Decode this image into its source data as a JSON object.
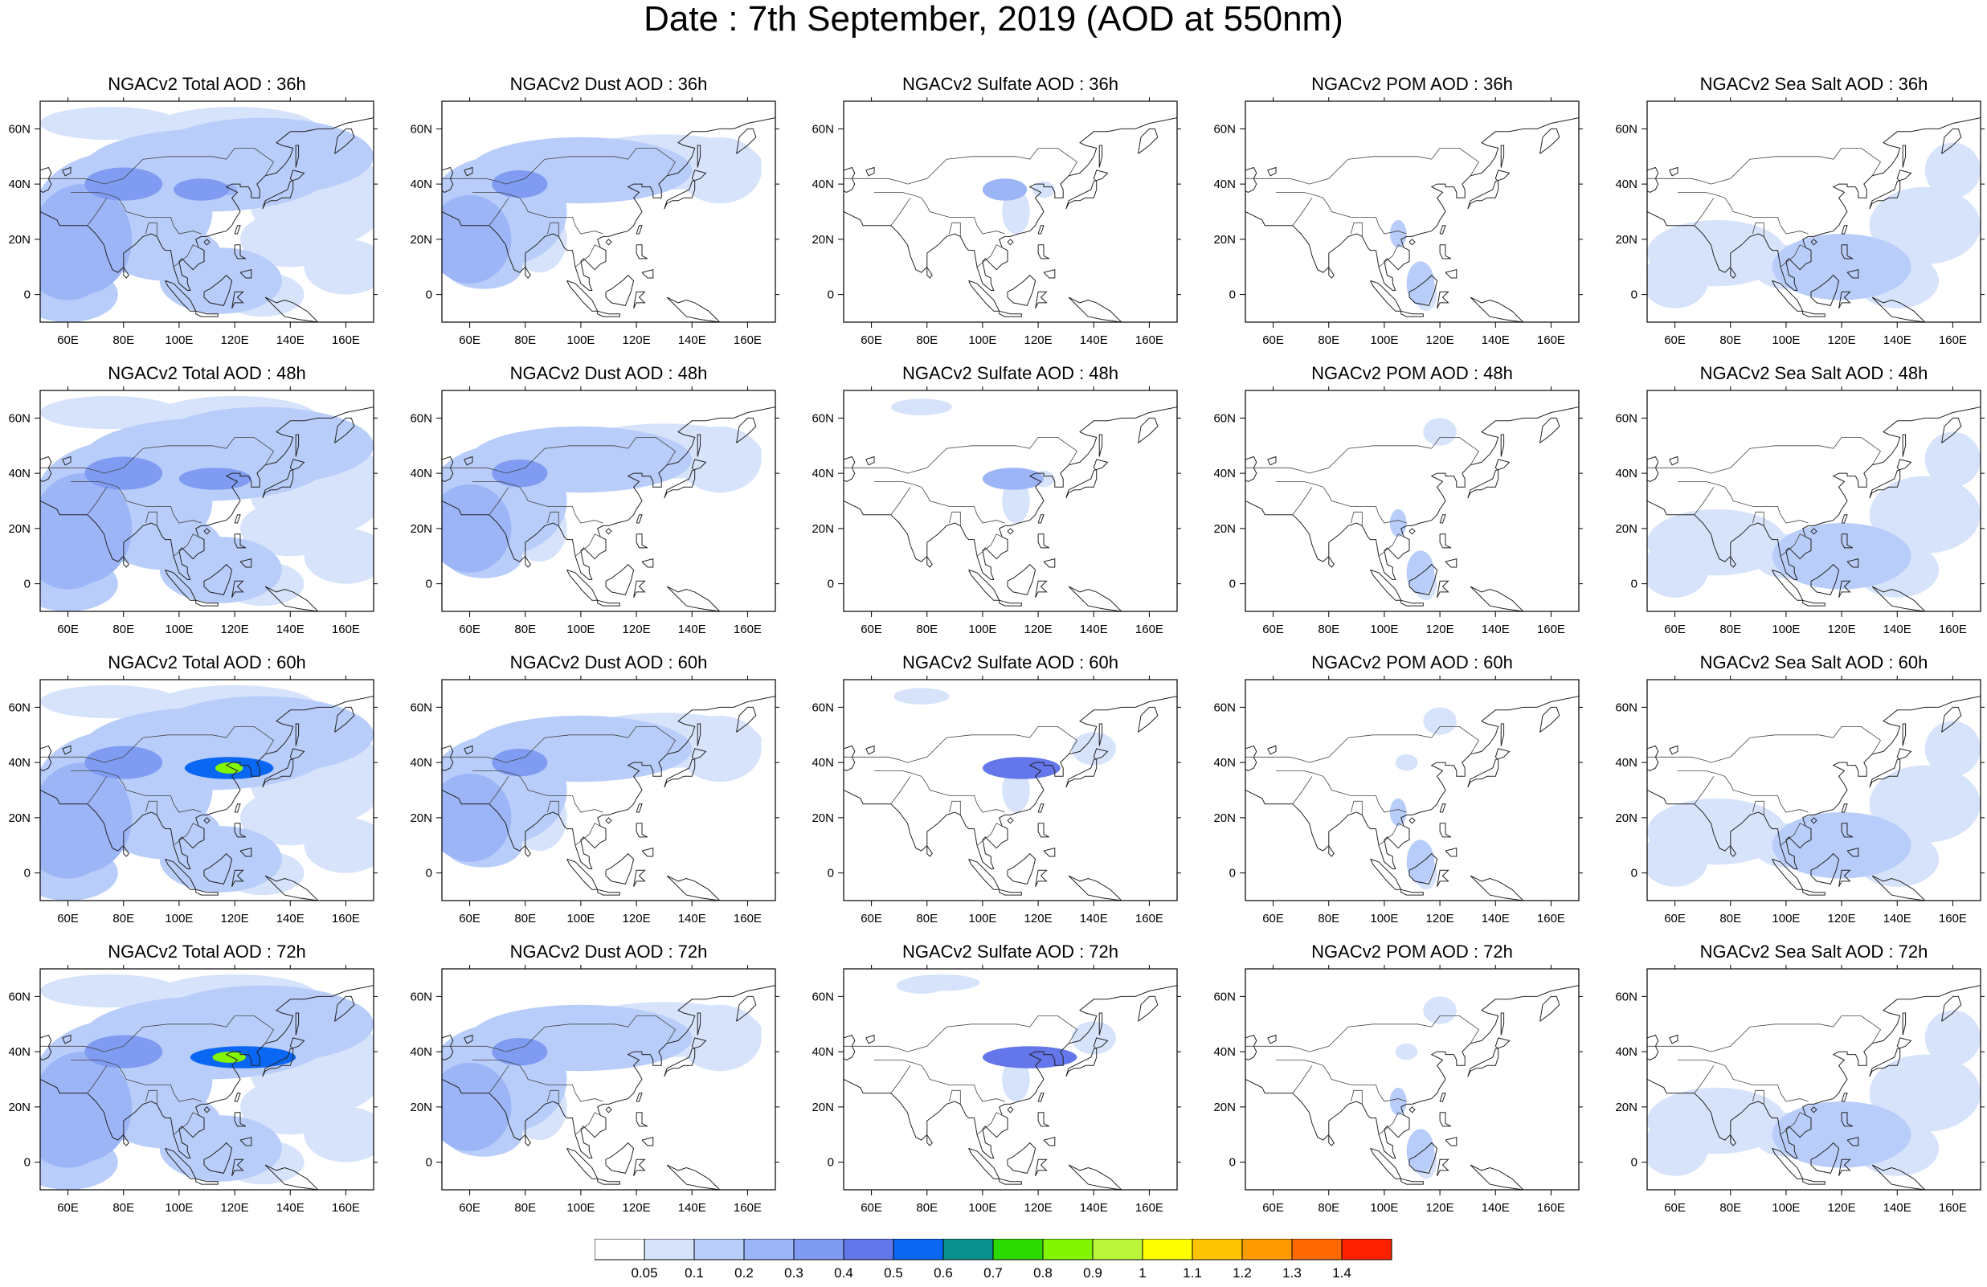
{
  "title": "Date : 7th September, 2019 (AOD at 550nm)",
  "row_labels": [
    "36h",
    "48h",
    "60h",
    "72h"
  ],
  "panel_titles": [
    [
      "NGACv2 Total AOD : 36h",
      "NGACv2 Dust AOD : 36h",
      "NGACv2 Sulfate AOD : 36h",
      "NGACv2 POM AOD : 36h",
      "NGACv2 Sea Salt AOD : 36h"
    ],
    [
      "NGACv2 Total AOD : 48h",
      "NGACv2 Dust AOD : 48h",
      "NGACv2 Sulfate AOD : 48h",
      "NGACv2 POM AOD : 48h",
      "NGACv2 Sea Salt AOD : 48h"
    ],
    [
      "NGACv2 Total AOD : 60h",
      "NGACv2 Dust AOD : 60h",
      "NGACv2 Sulfate AOD : 60h",
      "NGACv2 POM AOD : 60h",
      "NGACv2 Sea Salt AOD : 60h"
    ],
    [
      "NGACv2 Total AOD : 72h",
      "NGACv2 Dust AOD : 72h",
      "NGACv2 Sulfate AOD : 72h",
      "NGACv2 POM AOD : 72h",
      "NGACv2 Sea Salt  AOD : 72h"
    ]
  ],
  "axes": {
    "lon_ticks": [
      "60E",
      "80E",
      "100E",
      "120E",
      "140E",
      "160E"
    ],
    "lat_ticks": [
      "60N",
      "40N",
      "20N",
      "0"
    ],
    "lon_range": [
      50,
      170
    ],
    "lat_range": [
      -10,
      70
    ]
  },
  "colorbar": {
    "labels": [
      "0.05",
      "0.1",
      "0.2",
      "0.3",
      "0.4",
      "0.5",
      "0.6",
      "0.7",
      "0.8",
      "0.9",
      "1",
      "1.1",
      "1.2",
      "1.3",
      "1.4"
    ],
    "colors": [
      "#ffffff",
      "#d7e3fb",
      "#b9cdfa",
      "#9cb5f7",
      "#7f9cf2",
      "#6377ea",
      "#0a67f4",
      "#0a8f8f",
      "#2dda00",
      "#84f500",
      "#baf53a",
      "#ffff00",
      "#ffc400",
      "#ff9b00",
      "#ff6a00",
      "#ff2200"
    ]
  }
}
